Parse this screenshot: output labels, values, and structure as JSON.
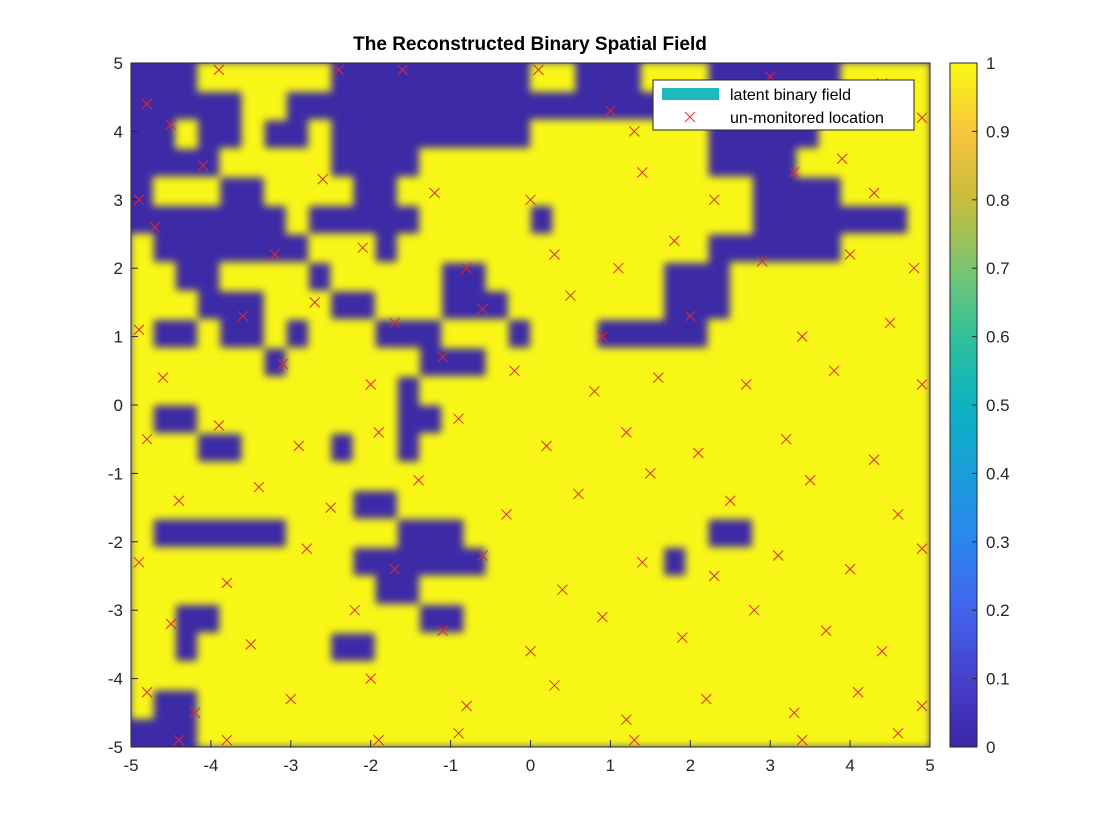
{
  "chart_data": {
    "type": "heatmap",
    "title": "The Reconstructed Binary Spatial Field",
    "xlim": [
      -5,
      5
    ],
    "ylim": [
      -5,
      5
    ],
    "x_ticks": [
      -5,
      -4,
      -3,
      -2,
      -1,
      0,
      1,
      2,
      3,
      4,
      5
    ],
    "y_ticks": [
      -5,
      -4,
      -3,
      -2,
      -1,
      0,
      1,
      2,
      3,
      4,
      5
    ],
    "colorbar": {
      "colormap": "parula",
      "limits": [
        0,
        1
      ],
      "ticks": [
        0,
        0.1,
        0.2,
        0.3,
        0.4,
        0.5,
        0.6,
        0.7,
        0.8,
        0.9,
        1
      ],
      "tick_labels": [
        "0",
        "0.1",
        "0.2",
        "0.3",
        "0.4",
        "0.5",
        "0.6",
        "0.7",
        "0.8",
        "0.9",
        "1"
      ]
    },
    "grid": false,
    "legend_position": "top-right",
    "series": [
      {
        "name": "latent binary field",
        "kind": "heatmap",
        "color": "#1fb8bd"
      },
      {
        "name": "un-monitored location",
        "kind": "scatter",
        "marker": "x",
        "color": "#e8252b"
      }
    ],
    "colors": {
      "low": "#3d2aa6",
      "mid": "#1fb8bd",
      "high": "#f8f613",
      "marker": "#e8252b"
    },
    "field_rows_top_to_bottom": [
      "000111111000000000110001110000001111",
      "000001100000000000000000000000000111",
      "001001001000000000111111110000011111",
      "000011111000011111111111110000111111",
      "011100111100111111111111111100001111",
      "000000010000011111011111111100000001",
      "100000001110111111111111110000001111",
      "110011110111110011111111000111111111",
      "111000111001110001111111000111111111",
      "100100101110001110111000001111111111",
      "111111011111100011111111111111111111",
      "111111111111011111111111111111111111",
      "100111111111001111111111111111111111",
      "111001111011011111111111111111111111",
      "111111111111111111111111111111111111",
      "111111111100111111111111111111111111",
      "100000011111000111111111110011111111",
      "111111111100000011111111011111111111",
      "111111111110011111111111111111111111",
      "110011111111100111111111111111111111",
      "110111111001111111111111111111111111",
      "111111111111111111111111111111111111",
      "100111111111111111111111111111111111",
      "000111111111111111111111111111111111"
    ],
    "unmonitored_locations": [
      [
        -4.8,
        4.4
      ],
      [
        -4.5,
        4.1
      ],
      [
        -3.9,
        4.9
      ],
      [
        -2.4,
        4.9
      ],
      [
        -1.6,
        4.9
      ],
      [
        0.1,
        4.9
      ],
      [
        1.0,
        4.3
      ],
      [
        1.3,
        4.0
      ],
      [
        2.6,
        4.6
      ],
      [
        3.0,
        4.8
      ],
      [
        3.6,
        4.6
      ],
      [
        4.4,
        4.7
      ],
      [
        4.9,
        4.2
      ],
      [
        -4.9,
        3.0
      ],
      [
        -4.1,
        3.5
      ],
      [
        -2.6,
        3.3
      ],
      [
        -1.2,
        3.1
      ],
      [
        0.0,
        3.0
      ],
      [
        1.4,
        3.4
      ],
      [
        2.3,
        3.0
      ],
      [
        3.3,
        3.4
      ],
      [
        3.9,
        3.6
      ],
      [
        4.3,
        3.1
      ],
      [
        -4.7,
        2.6
      ],
      [
        -3.2,
        2.2
      ],
      [
        -2.1,
        2.3
      ],
      [
        -0.8,
        2.0
      ],
      [
        0.3,
        2.2
      ],
      [
        1.1,
        2.0
      ],
      [
        1.8,
        2.4
      ],
      [
        2.9,
        2.1
      ],
      [
        4.0,
        2.2
      ],
      [
        4.8,
        2.0
      ],
      [
        -4.9,
        1.1
      ],
      [
        -3.6,
        1.3
      ],
      [
        -2.7,
        1.5
      ],
      [
        -1.7,
        1.2
      ],
      [
        -0.6,
        1.4
      ],
      [
        0.5,
        1.6
      ],
      [
        0.9,
        1.0
      ],
      [
        2.0,
        1.3
      ],
      [
        3.4,
        1.0
      ],
      [
        4.5,
        1.2
      ],
      [
        -4.6,
        0.4
      ],
      [
        -3.1,
        0.6
      ],
      [
        -2.0,
        0.3
      ],
      [
        -1.1,
        0.7
      ],
      [
        -0.2,
        0.5
      ],
      [
        0.8,
        0.2
      ],
      [
        1.6,
        0.4
      ],
      [
        2.7,
        0.3
      ],
      [
        3.8,
        0.5
      ],
      [
        4.9,
        0.3
      ],
      [
        -4.8,
        -0.5
      ],
      [
        -3.9,
        -0.3
      ],
      [
        -2.9,
        -0.6
      ],
      [
        -1.9,
        -0.4
      ],
      [
        -0.9,
        -0.2
      ],
      [
        0.2,
        -0.6
      ],
      [
        1.2,
        -0.4
      ],
      [
        2.1,
        -0.7
      ],
      [
        3.2,
        -0.5
      ],
      [
        4.3,
        -0.8
      ],
      [
        -4.4,
        -1.4
      ],
      [
        -3.4,
        -1.2
      ],
      [
        -2.5,
        -1.5
      ],
      [
        -1.4,
        -1.1
      ],
      [
        -0.3,
        -1.6
      ],
      [
        0.6,
        -1.3
      ],
      [
        1.5,
        -1.0
      ],
      [
        2.5,
        -1.4
      ],
      [
        3.5,
        -1.1
      ],
      [
        4.6,
        -1.6
      ],
      [
        -4.9,
        -2.3
      ],
      [
        -3.8,
        -2.6
      ],
      [
        -2.8,
        -2.1
      ],
      [
        -1.7,
        -2.4
      ],
      [
        -0.6,
        -2.2
      ],
      [
        0.4,
        -2.7
      ],
      [
        1.4,
        -2.3
      ],
      [
        2.3,
        -2.5
      ],
      [
        3.1,
        -2.2
      ],
      [
        4.0,
        -2.4
      ],
      [
        4.9,
        -2.1
      ],
      [
        -4.5,
        -3.2
      ],
      [
        -3.5,
        -3.5
      ],
      [
        -2.2,
        -3.0
      ],
      [
        -1.1,
        -3.3
      ],
      [
        0.0,
        -3.6
      ],
      [
        0.9,
        -3.1
      ],
      [
        1.9,
        -3.4
      ],
      [
        2.8,
        -3.0
      ],
      [
        3.7,
        -3.3
      ],
      [
        4.4,
        -3.6
      ],
      [
        -4.8,
        -4.2
      ],
      [
        -4.2,
        -4.5
      ],
      [
        -3.0,
        -4.3
      ],
      [
        -2.0,
        -4.0
      ],
      [
        -0.8,
        -4.4
      ],
      [
        0.3,
        -4.1
      ],
      [
        1.2,
        -4.6
      ],
      [
        2.2,
        -4.3
      ],
      [
        3.3,
        -4.5
      ],
      [
        4.1,
        -4.2
      ],
      [
        4.9,
        -4.4
      ],
      [
        -4.4,
        -4.9
      ],
      [
        -3.8,
        -4.9
      ],
      [
        -1.9,
        -4.9
      ],
      [
        -0.9,
        -4.8
      ],
      [
        1.3,
        -4.9
      ],
      [
        3.4,
        -4.9
      ],
      [
        4.6,
        -4.8
      ]
    ]
  }
}
